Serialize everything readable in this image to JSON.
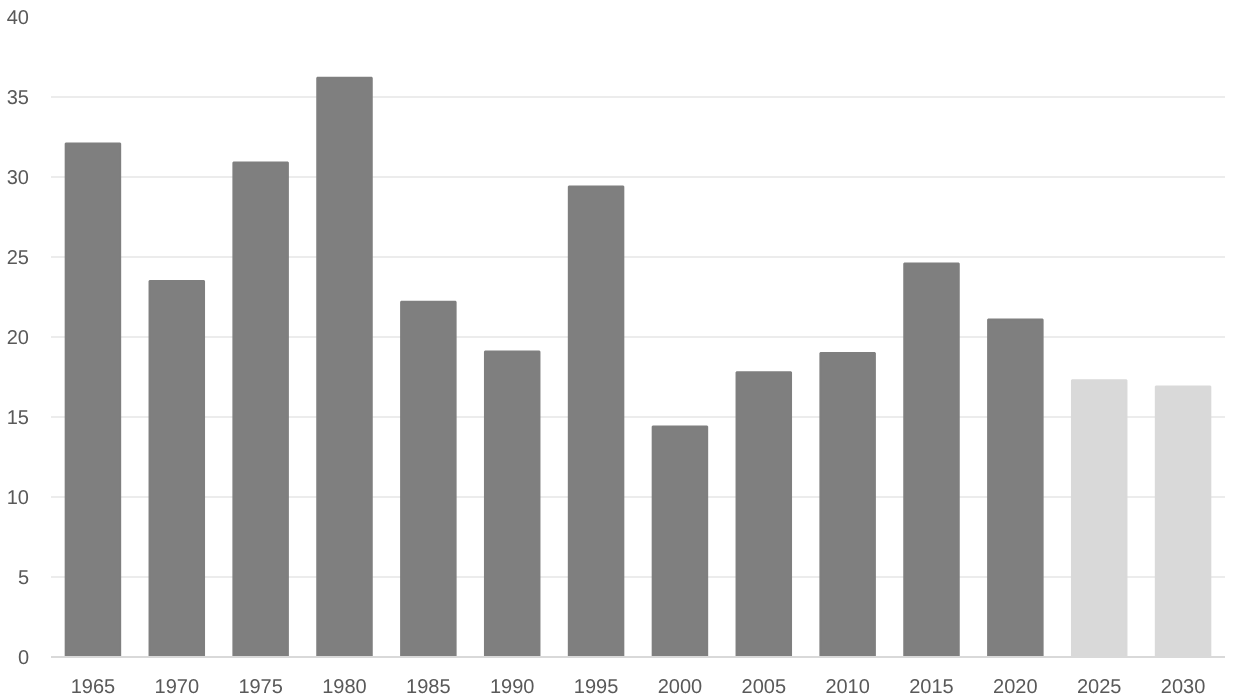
{
  "chart_data": {
    "type": "bar",
    "categories": [
      "1965",
      "1970",
      "1975",
      "1980",
      "1985",
      "1990",
      "1995",
      "2000",
      "2005",
      "2010",
      "2015",
      "2020",
      "2025",
      "2030"
    ],
    "values": [
      32.1,
      23.5,
      30.9,
      36.2,
      22.2,
      19.1,
      29.4,
      14.4,
      17.8,
      19.0,
      24.6,
      21.1,
      17.3,
      16.9
    ],
    "colors": [
      "#7f7f7f",
      "#7f7f7f",
      "#7f7f7f",
      "#7f7f7f",
      "#7f7f7f",
      "#7f7f7f",
      "#7f7f7f",
      "#7f7f7f",
      "#7f7f7f",
      "#7f7f7f",
      "#7f7f7f",
      "#7f7f7f",
      "#d9d9d9",
      "#d9d9d9"
    ],
    "ylim": [
      0,
      40
    ],
    "yticks": [
      0,
      5,
      10,
      15,
      20,
      25,
      30,
      35,
      40
    ],
    "grid": "y"
  }
}
